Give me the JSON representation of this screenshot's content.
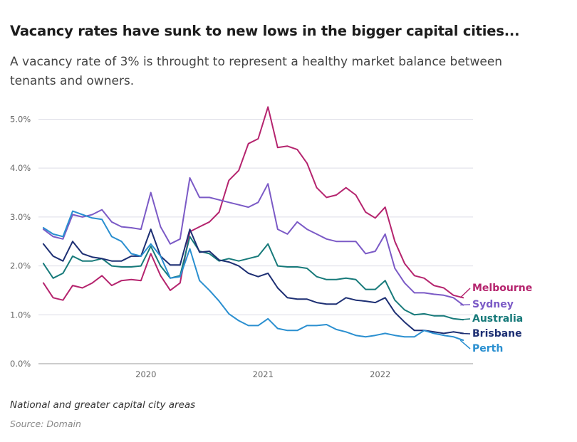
{
  "title": "Vacancy rates have sunk to new lows in the bigger capital cities...",
  "subtitle": "A vacancy rate of 3% is throught to represent a healthy market balance between tenants and owners.",
  "note": "National and greater capital city areas",
  "source": "Source: Domain",
  "chart_data": {
    "type": "line",
    "x": [
      2019.125,
      2019.208,
      2019.292,
      2019.375,
      2019.458,
      2019.542,
      2019.625,
      2019.708,
      2019.792,
      2019.875,
      2019.958,
      2020.042,
      2020.125,
      2020.208,
      2020.292,
      2020.375,
      2020.458,
      2020.542,
      2020.625,
      2020.708,
      2020.792,
      2020.875,
      2020.958,
      2021.042,
      2021.125,
      2021.208,
      2021.292,
      2021.375,
      2021.458,
      2021.542,
      2021.625,
      2021.708,
      2021.792,
      2021.875,
      2021.958,
      2022.042,
      2022.125,
      2022.208,
      2022.292,
      2022.375,
      2022.458,
      2022.542,
      2022.625,
      2022.708
    ],
    "x_ticks": [
      2020,
      2021,
      2022
    ],
    "x_tick_labels": [
      "2020",
      "2021",
      "2022"
    ],
    "xlim": [
      2019.083,
      2022.792
    ],
    "ylim": [
      0,
      5.4
    ],
    "y_ticks": [
      0,
      1,
      2,
      3,
      4,
      5
    ],
    "y_tick_labels": [
      "0.0%",
      "1.0%",
      "2.0%",
      "3.0%",
      "4.0%",
      "5.0%"
    ],
    "grid": true,
    "legend": "direct labels at line ends",
    "series": [
      {
        "name": "Melbourne",
        "color": "#b5246e",
        "values": [
          1.65,
          1.35,
          1.3,
          1.6,
          1.55,
          1.65,
          1.8,
          1.6,
          1.7,
          1.72,
          1.7,
          2.25,
          1.8,
          1.5,
          1.65,
          2.7,
          2.8,
          2.9,
          3.1,
          3.75,
          3.95,
          4.5,
          4.6,
          5.25,
          4.42,
          4.45,
          4.38,
          4.1,
          3.6,
          3.4,
          3.45,
          3.6,
          3.45,
          3.1,
          2.98,
          3.2,
          2.5,
          2.05,
          1.8,
          1.75,
          1.6,
          1.55,
          1.4,
          1.35
        ]
      },
      {
        "name": "Sydney",
        "color": "#7b5ac6",
        "values": [
          2.75,
          2.6,
          2.55,
          3.05,
          3.0,
          3.05,
          3.15,
          2.9,
          2.8,
          2.78,
          2.75,
          3.5,
          2.8,
          2.45,
          2.55,
          3.8,
          3.4,
          3.4,
          3.35,
          3.3,
          3.25,
          3.2,
          3.3,
          3.68,
          2.75,
          2.65,
          2.9,
          2.75,
          2.65,
          2.55,
          2.5,
          2.5,
          2.5,
          2.25,
          2.3,
          2.65,
          1.95,
          1.65,
          1.45,
          1.45,
          1.42,
          1.4,
          1.35,
          1.2
        ]
      },
      {
        "name": "Australia",
        "color": "#177a7a",
        "values": [
          2.05,
          1.75,
          1.85,
          2.2,
          2.1,
          2.1,
          2.15,
          2.0,
          1.98,
          1.98,
          2.0,
          2.4,
          2.0,
          1.75,
          1.8,
          2.6,
          2.3,
          2.25,
          2.1,
          2.15,
          2.1,
          2.15,
          2.2,
          2.45,
          2.0,
          1.98,
          1.98,
          1.95,
          1.78,
          1.72,
          1.72,
          1.75,
          1.72,
          1.52,
          1.52,
          1.7,
          1.3,
          1.1,
          1.0,
          1.02,
          0.98,
          0.98,
          0.92,
          0.9
        ]
      },
      {
        "name": "Brisbane",
        "color": "#1d2f73",
        "values": [
          2.45,
          2.2,
          2.1,
          2.5,
          2.25,
          2.18,
          2.15,
          2.1,
          2.1,
          2.2,
          2.2,
          2.75,
          2.2,
          2.02,
          2.02,
          2.75,
          2.28,
          2.3,
          2.12,
          2.08,
          2.0,
          1.85,
          1.78,
          1.85,
          1.55,
          1.35,
          1.32,
          1.32,
          1.25,
          1.22,
          1.22,
          1.35,
          1.3,
          1.28,
          1.25,
          1.35,
          1.05,
          0.85,
          0.68,
          0.68,
          0.65,
          0.62,
          0.65,
          0.62
        ]
      },
      {
        "name": "Perth",
        "color": "#2a8fd0",
        "values": [
          2.78,
          2.65,
          2.6,
          3.12,
          3.05,
          2.98,
          2.95,
          2.6,
          2.5,
          2.25,
          2.2,
          2.45,
          2.2,
          1.75,
          1.78,
          2.35,
          1.7,
          1.5,
          1.28,
          1.02,
          0.88,
          0.78,
          0.78,
          0.92,
          0.72,
          0.68,
          0.68,
          0.78,
          0.78,
          0.8,
          0.7,
          0.65,
          0.58,
          0.55,
          0.58,
          0.62,
          0.58,
          0.55,
          0.55,
          0.68,
          0.62,
          0.58,
          0.55,
          0.48
        ]
      }
    ]
  }
}
